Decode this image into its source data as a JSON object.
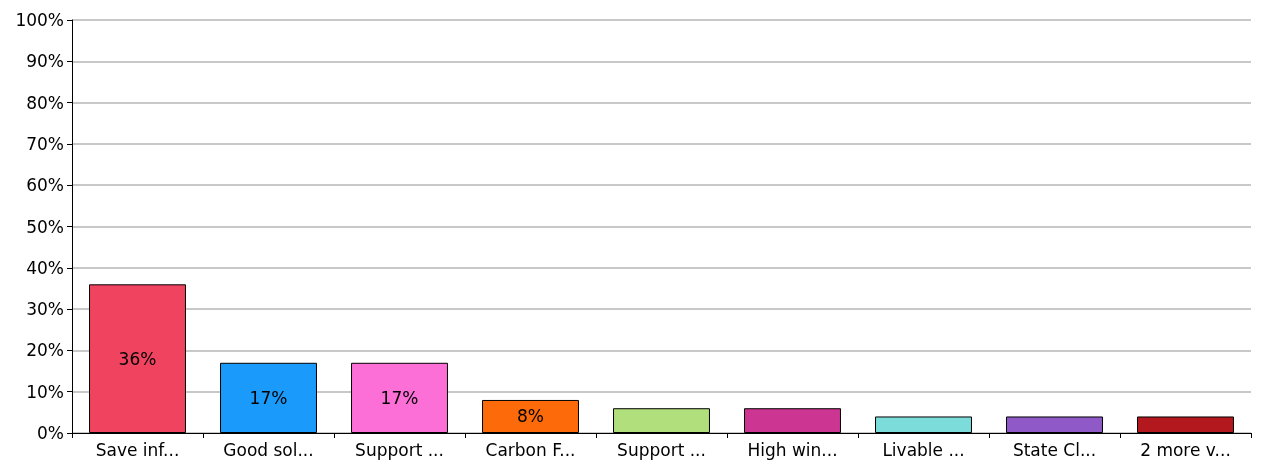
{
  "chart_data": {
    "type": "bar",
    "categories": [
      "Save inf...",
      "Good sol...",
      "Support ...",
      "Carbon F...",
      "Support ...",
      "High win...",
      "Livable ...",
      "State Cl...",
      "2 more v..."
    ],
    "values": [
      36,
      17,
      17,
      8,
      6,
      6,
      4,
      4,
      4
    ],
    "colors": [
      "#f0435f",
      "#1a9bfc",
      "#fb6fd6",
      "#fc6a0a",
      "#b1df7c",
      "#cd3593",
      "#7bdcd9",
      "#9059c8",
      "#b3181f"
    ],
    "value_labels": [
      "36%",
      "17%",
      "17%",
      "8%",
      null,
      null,
      null,
      null,
      null
    ],
    "ylim": [
      0,
      100
    ],
    "yticks": [
      {
        "value": 0,
        "label": "0%"
      },
      {
        "value": 10,
        "label": "10%"
      },
      {
        "value": 20,
        "label": "20%"
      },
      {
        "value": 30,
        "label": "30%"
      },
      {
        "value": 40,
        "label": "40%"
      },
      {
        "value": 50,
        "label": "50%"
      },
      {
        "value": 60,
        "label": "60%"
      },
      {
        "value": 70,
        "label": "70%"
      },
      {
        "value": 80,
        "label": "80%"
      },
      {
        "value": 90,
        "label": "90%"
      },
      {
        "value": 100,
        "label": "100%"
      }
    ],
    "grid": "y"
  }
}
